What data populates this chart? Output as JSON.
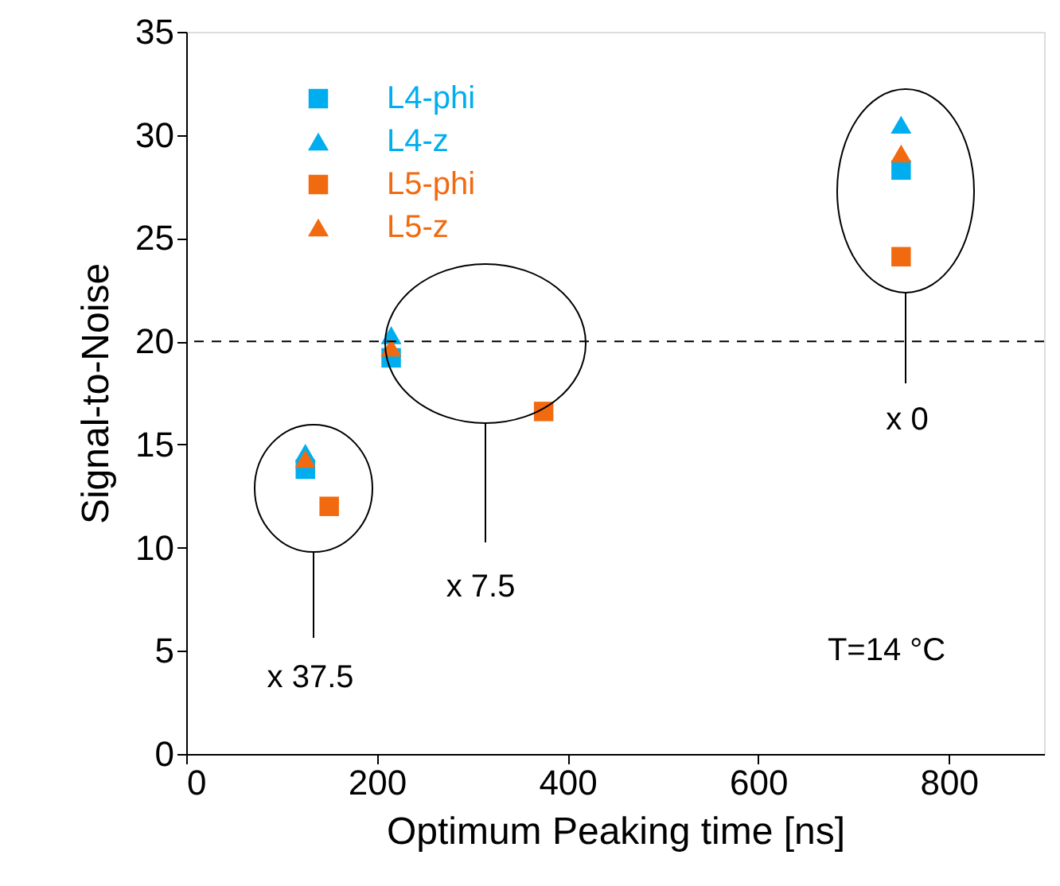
{
  "chart_data": {
    "type": "scatter",
    "xlabel": "Optimum Peaking time [ns]",
    "ylabel": "Signal-to-Noise",
    "xlim": [
      0,
      900
    ],
    "xticks": [
      0,
      200,
      400,
      600,
      800
    ],
    "ylim": [
      0,
      35
    ],
    "yticks": [
      0,
      5,
      10,
      15,
      20,
      25,
      30,
      35
    ],
    "grid": false,
    "legend": "top left",
    "series": [
      {
        "name": "L4-phi",
        "color": "#00aeef",
        "marker": "square",
        "x": [
          125,
          215,
          750
        ],
        "values": [
          13.8,
          19.2,
          28.3
        ]
      },
      {
        "name": "L4-z",
        "color": "#00aeef",
        "marker": "triangle",
        "x": [
          125,
          215,
          750
        ],
        "values": [
          14.6,
          20.3,
          30.5
        ]
      },
      {
        "name": "L5-phi",
        "color": "#f26a10",
        "marker": "square",
        "x": [
          150,
          375,
          750
        ],
        "values": [
          12.0,
          16.6,
          24.1
        ]
      },
      {
        "name": "L5-z",
        "color": "#f26a10",
        "marker": "triangle",
        "x": [
          125,
          215,
          750
        ],
        "values": [
          14.3,
          19.7,
          29.1
        ]
      }
    ],
    "ref_lines": [
      {
        "axis": "y",
        "value": 20,
        "label": null,
        "color": "#000000",
        "line_style": "dashed"
      }
    ],
    "annotations": [
      "x 37.5",
      "x 7.5",
      "x 0",
      "T=14 °C"
    ]
  }
}
